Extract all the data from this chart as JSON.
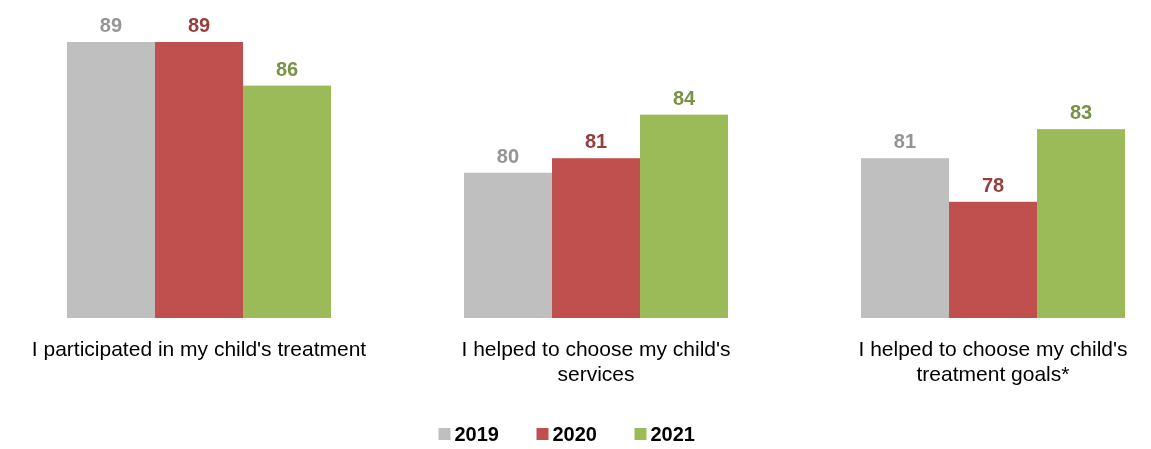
{
  "chart_data": {
    "type": "bar",
    "categories": [
      "I participated in my child's treatment",
      "I helped to choose my child's services",
      "I helped to choose my child's treatment goals*"
    ],
    "series": [
      {
        "name": "2019",
        "color": "#bfbfbf",
        "values": [
          89,
          80,
          81
        ]
      },
      {
        "name": "2020",
        "color": "#c0504d",
        "values": [
          89,
          81,
          78
        ]
      },
      {
        "name": "2021",
        "color": "#9bbb59",
        "values": [
          86,
          84,
          83
        ]
      }
    ],
    "ylim": [
      70,
      89
    ],
    "data_labels": true,
    "legend": "bottom"
  }
}
